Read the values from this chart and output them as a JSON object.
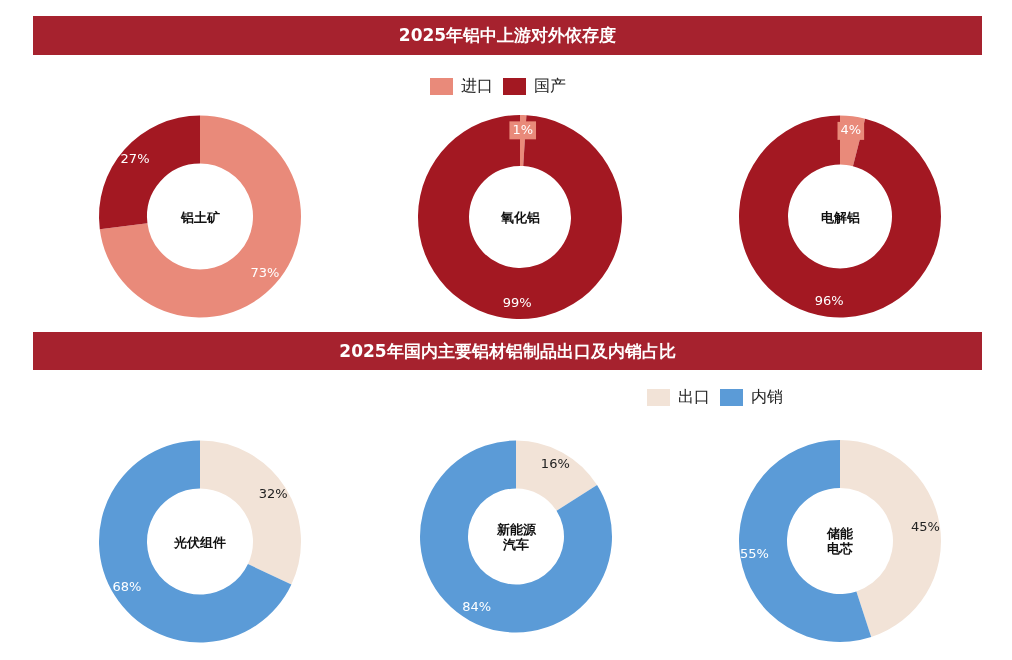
{
  "chart_data": [
    {
      "type": "other",
      "title": "2025年铝中上游对外依存度"
    },
    {
      "type": "donut",
      "title": "铝土矿",
      "categories": [
        null,
        null
      ],
      "values": [
        73,
        27
      ],
      "colors": [
        "#e98a7a",
        "#a31822"
      ],
      "value_labels": [
        "73%",
        "27%"
      ]
    },
    {
      "type": "donut",
      "title": "氧化铝",
      "categories": [
        "进口",
        "国产"
      ],
      "values": [
        1,
        99
      ],
      "colors": [
        "#e98a7a",
        "#a31822"
      ],
      "value_labels": [
        "1%",
        "99%"
      ],
      "legend": "top"
    },
    {
      "type": "donut",
      "title": "电解铝",
      "categories": [
        null,
        null
      ],
      "values": [
        4,
        96
      ],
      "colors": [
        "#e98a7a",
        "#a31822"
      ],
      "value_labels": [
        "4%",
        "96%"
      ]
    },
    {
      "type": "other",
      "title": "2025年国内主要铝材铝制品出口及内销占比"
    },
    {
      "type": "donut",
      "title": "光伏组件",
      "categories": [
        null,
        null
      ],
      "values": [
        32,
        68
      ],
      "colors": [
        "#f2e3d7",
        "#5b9bd7"
      ],
      "value_labels": [
        "32%",
        "68%"
      ]
    },
    {
      "type": "donut",
      "title": "新能源汽车",
      "categories": [
        null,
        null
      ],
      "values": [
        16,
        84
      ],
      "colors": [
        "#f2e3d7",
        "#5b9bd7"
      ],
      "value_labels": [
        "16%",
        "84%"
      ]
    },
    {
      "type": "donut",
      "title": "储能电芯",
      "categories": [
        "出口",
        "内销"
      ],
      "values": [
        45,
        55
      ],
      "colors": [
        "#f2e3d7",
        "#5b9bd7"
      ],
      "value_labels": [
        "45%",
        "55%"
      ],
      "legend": "top left"
    }
  ]
}
